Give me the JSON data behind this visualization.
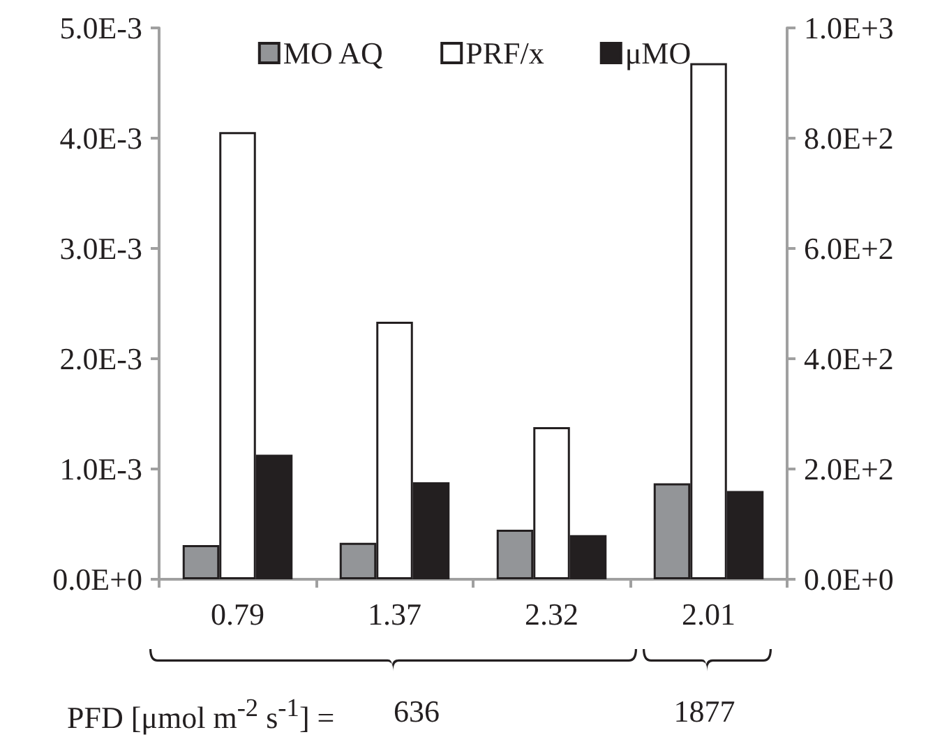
{
  "chart_data": {
    "type": "bar",
    "categories": [
      "0.79",
      "1.37",
      "2.32",
      "2.01"
    ],
    "series": [
      {
        "name": "MO AQ",
        "color": "#939598",
        "values": [
          0.00031,
          0.00033,
          0.00045,
          0.00087
        ]
      },
      {
        "name": "PRF/x",
        "color": "#ffffff",
        "axis": "y2",
        "values": [
          811,
          467,
          276,
          936
        ]
      },
      {
        "name": "μMO",
        "color": "#231f20",
        "values": [
          0.00113,
          0.00088,
          0.0004,
          0.0008
        ]
      }
    ],
    "ylim": [
      0,
      0.005
    ],
    "yticks": [
      {
        "value": 0,
        "label": "0.0E+0"
      },
      {
        "value": 0.001,
        "label": "1.0E-3"
      },
      {
        "value": 0.002,
        "label": "2.0E-3"
      },
      {
        "value": 0.003,
        "label": "3.0E-3"
      },
      {
        "value": 0.004,
        "label": "4.0E-3"
      },
      {
        "value": 0.005,
        "label": "5.0E-3"
      }
    ],
    "y2lim": [
      0,
      1000
    ],
    "y2ticks": [
      {
        "value": 0,
        "label": "0.0E+0"
      },
      {
        "value": 200,
        "label": "2.0E+2"
      },
      {
        "value": 400,
        "label": "4.0E+2"
      },
      {
        "value": 600,
        "label": "6.0E+2"
      },
      {
        "value": 800,
        "label": "8.0E+2"
      },
      {
        "value": 1000,
        "label": "1.0E+3"
      }
    ],
    "legend": "top",
    "grid": false,
    "annotations": [
      "PFD [μmol m$^{-2}$ s$^{-1}$] =",
      "636",
      "1877"
    ]
  }
}
